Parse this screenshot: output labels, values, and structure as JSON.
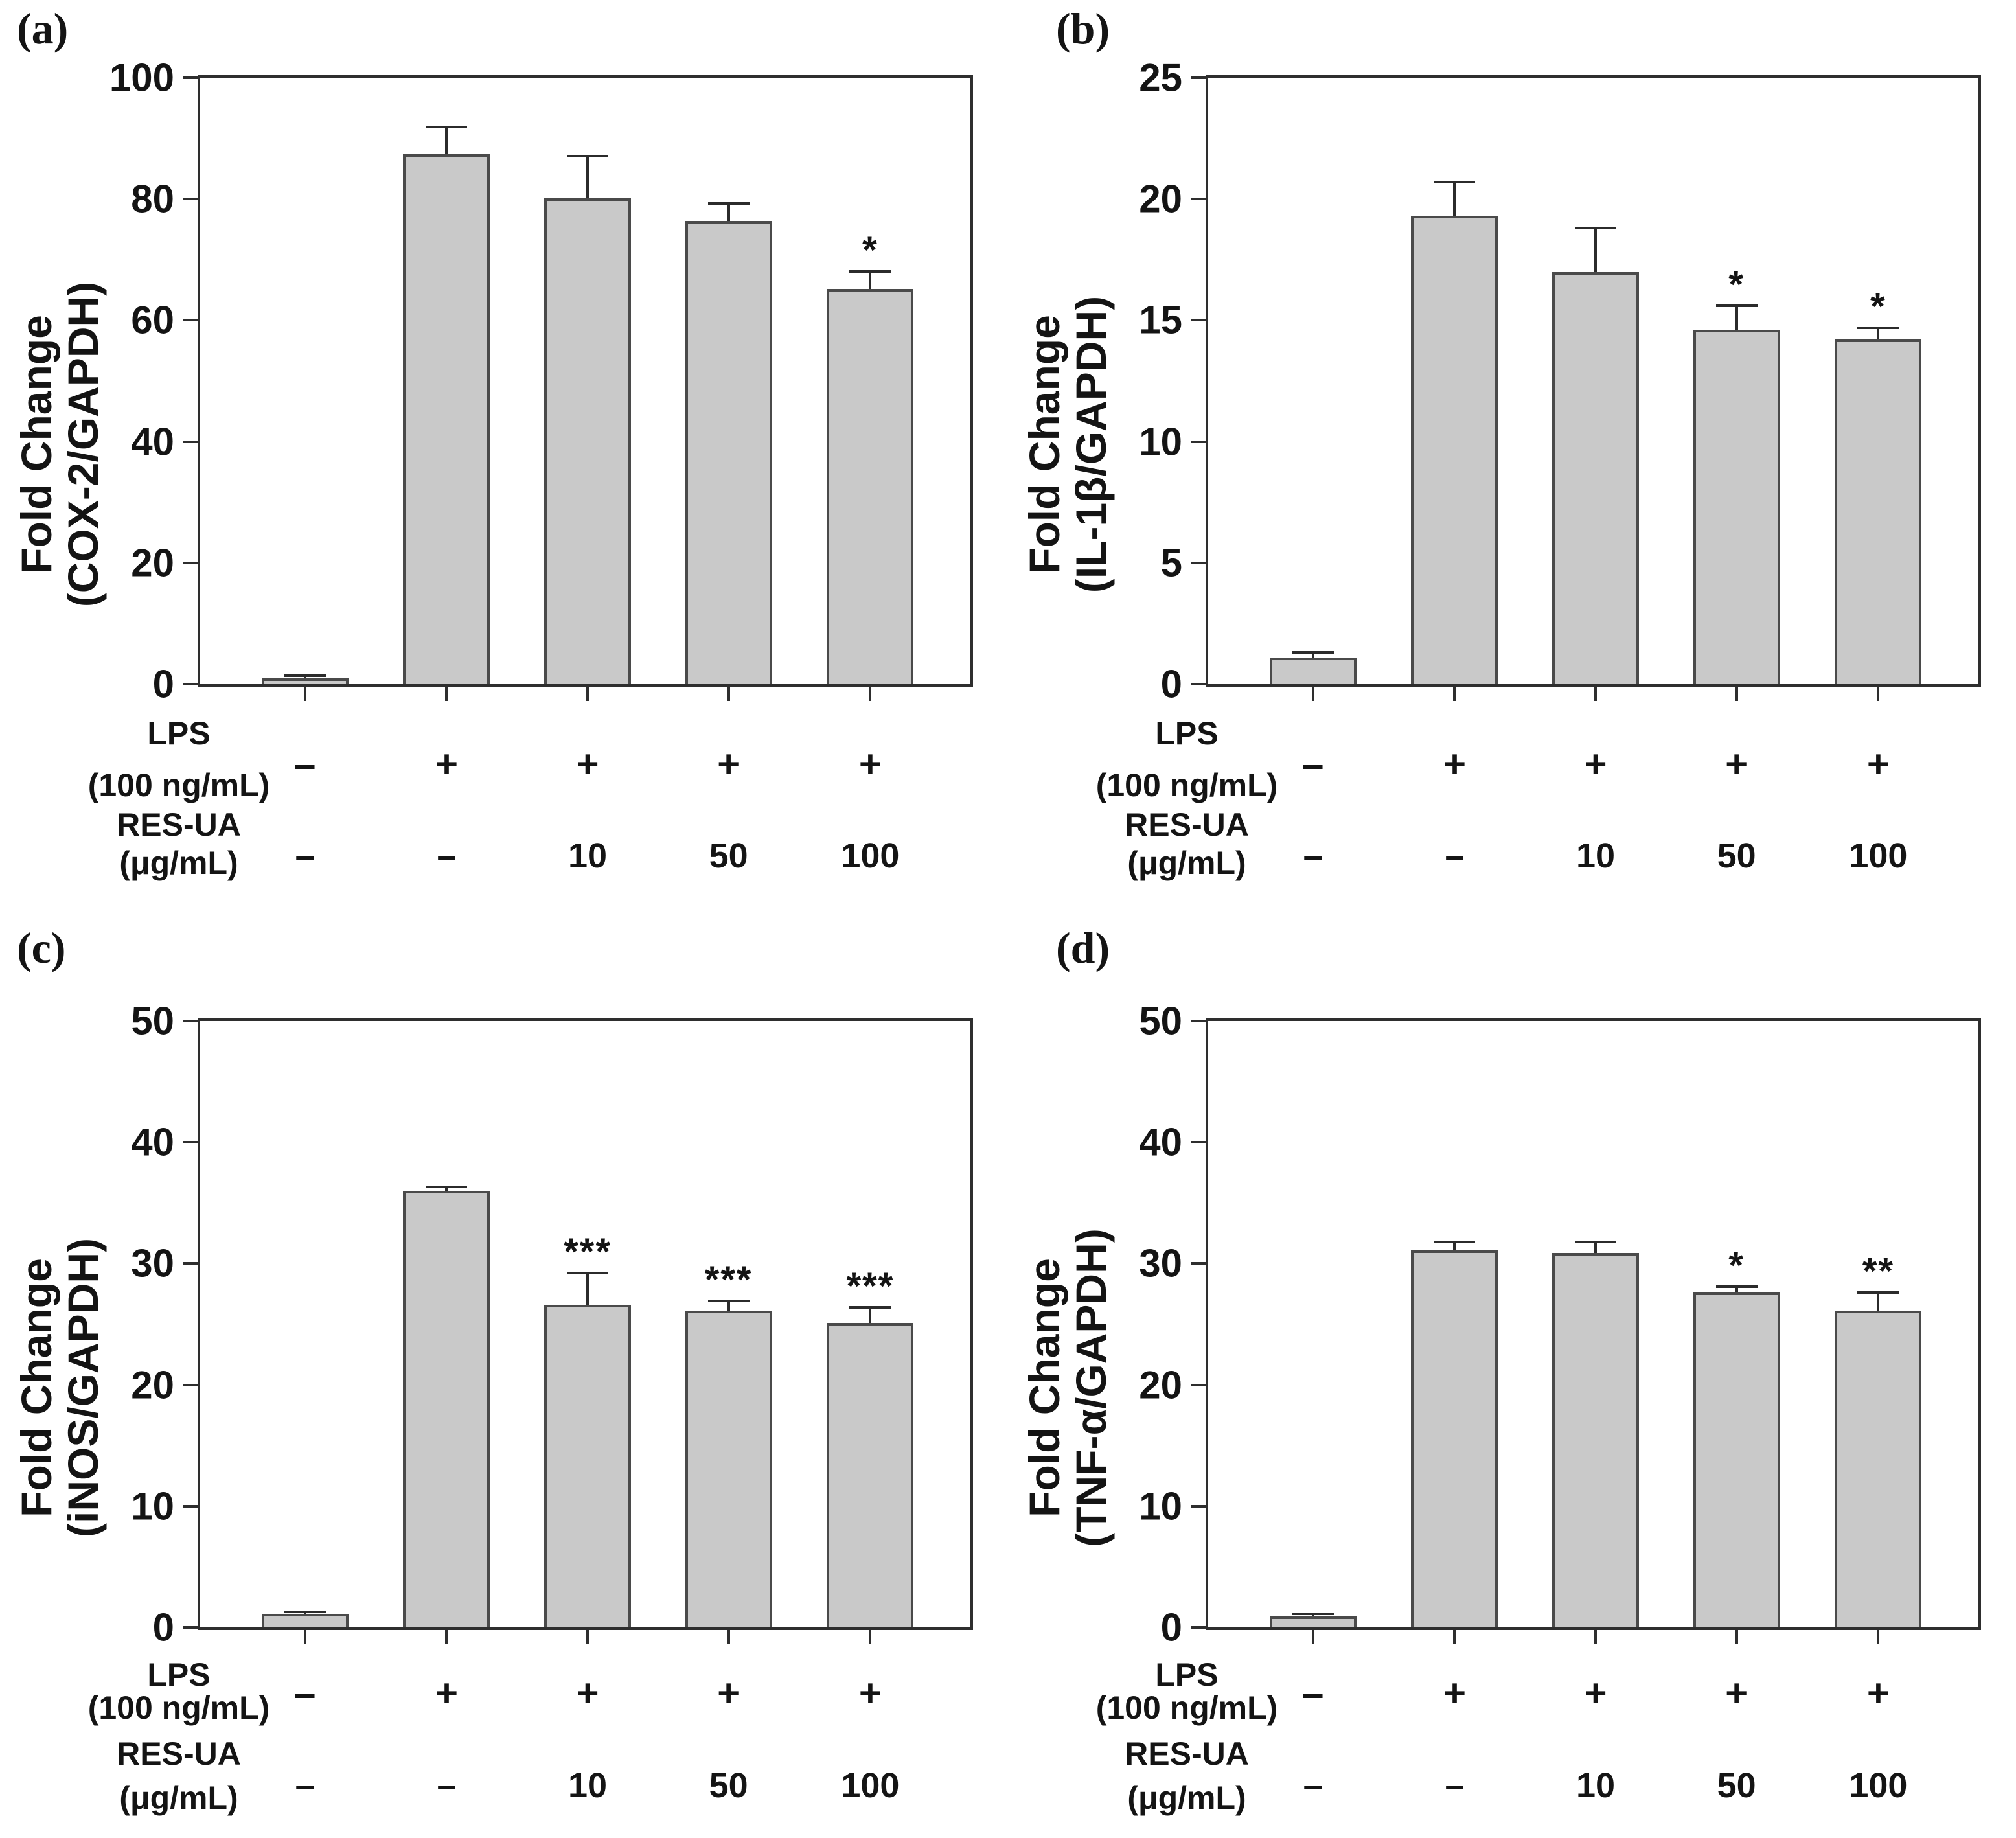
{
  "figure": {
    "background_color": "#ffffff",
    "bar_fill_color": "#c9c9c9",
    "bar_edge_color": "#4a4a4a",
    "axis_color": "#2e2e2e",
    "text_color": "#141414",
    "panel_letters": [
      "(a)",
      "(b)",
      "(c)",
      "(d)"
    ],
    "rows": {
      "lps_line1": "LPS",
      "lps_line2": "(100 ng/mL)",
      "res_line1": "RES-UA",
      "res_line2": "(μg/mL)",
      "lps_values": [
        "–",
        "+",
        "+",
        "+",
        "+"
      ],
      "res_values": [
        "–",
        "–",
        "10",
        "50",
        "100"
      ]
    }
  },
  "chart_data": [
    {
      "type": "bar",
      "panel": "(a)",
      "title": "",
      "ylabel_lines": [
        "Fold Change",
        "(COX-2/GAPDH)"
      ],
      "ylabel": "Fold Change (COX-2/GAPDH)",
      "ylim": [
        0,
        100
      ],
      "yticks": [
        0,
        20,
        40,
        60,
        80,
        100
      ],
      "categories": [
        "Control",
        "LPS",
        "LPS + RES-UA 10 μg/mL",
        "LPS + RES-UA 50 μg/mL",
        "LPS + RES-UA 100 μg/mL"
      ],
      "x_rows": {
        "LPS (100 ng/mL)": [
          "–",
          "+",
          "+",
          "+",
          "+"
        ],
        "RES-UA (μg/mL)": [
          "–",
          "–",
          "10",
          "50",
          "100"
        ]
      },
      "values": [
        1.0,
        87.4,
        80.1,
        76.4,
        65.2
      ],
      "errors": [
        0.4,
        4.5,
        7.0,
        2.9,
        2.9
      ],
      "significance": [
        "",
        "",
        "",
        "",
        "*"
      ],
      "grid": false,
      "legend": "none"
    },
    {
      "type": "bar",
      "panel": "(b)",
      "title": "",
      "ylabel_lines": [
        "Fold Change",
        "(IL-1β/GAPDH)"
      ],
      "ylabel": "Fold Change (IL-1β/GAPDH)",
      "ylim": [
        0,
        25
      ],
      "yticks": [
        0,
        5,
        10,
        15,
        20,
        25
      ],
      "categories": [
        "Control",
        "LPS",
        "LPS + RES-UA 10 μg/mL",
        "LPS + RES-UA 50 μg/mL",
        "LPS + RES-UA 100 μg/mL"
      ],
      "x_rows": {
        "LPS (100 ng/mL)": [
          "–",
          "+",
          "+",
          "+",
          "+"
        ],
        "RES-UA (μg/mL)": [
          "–",
          "–",
          "10",
          "50",
          "100"
        ]
      },
      "values": [
        1.1,
        19.3,
        17.0,
        14.6,
        14.2
      ],
      "errors": [
        0.2,
        1.4,
        1.8,
        1.0,
        0.5
      ],
      "significance": [
        "",
        "",
        "",
        "*",
        "*"
      ],
      "grid": false,
      "legend": "none"
    },
    {
      "type": "bar",
      "panel": "(c)",
      "title": "",
      "ylabel_lines": [
        "Fold Change",
        "(iNOS/GAPDH)"
      ],
      "ylabel": "Fold Change (iNOS/GAPDH)",
      "ylim": [
        0,
        50
      ],
      "yticks": [
        0,
        10,
        20,
        30,
        40,
        50
      ],
      "categories": [
        "Control",
        "LPS",
        "LPS + RES-UA 10 μg/mL",
        "LPS + RES-UA 50 μg/mL",
        "LPS + RES-UA 100 μg/mL"
      ],
      "x_rows": {
        "LPS (100 ng/mL)": [
          "–",
          "+",
          "+",
          "+",
          "+"
        ],
        "RES-UA (μg/mL)": [
          "–",
          "–",
          "10",
          "50",
          "100"
        ]
      },
      "values": [
        1.1,
        36.0,
        26.6,
        26.1,
        25.1
      ],
      "errors": [
        0.2,
        0.3,
        2.6,
        0.8,
        1.3
      ],
      "significance": [
        "",
        "",
        "***",
        "***",
        "***"
      ],
      "grid": false,
      "legend": "none"
    },
    {
      "type": "bar",
      "panel": "(d)",
      "title": "",
      "ylabel_lines": [
        "Fold Change",
        "(TNF-α/GAPDH)"
      ],
      "ylabel": "Fold Change (TNF-α/GAPDH)",
      "ylim": [
        0,
        50
      ],
      "yticks": [
        0,
        10,
        20,
        30,
        40,
        50
      ],
      "categories": [
        "Control",
        "LPS",
        "LPS + RES-UA 10 μg/mL",
        "LPS + RES-UA 50 μg/mL",
        "LPS + RES-UA 100 μg/mL"
      ],
      "x_rows": {
        "LPS (100 ng/mL)": [
          "–",
          "+",
          "+",
          "+",
          "+"
        ],
        "RES-UA (μg/mL)": [
          "–",
          "–",
          "10",
          "50",
          "100"
        ]
      },
      "values": [
        0.9,
        31.1,
        30.9,
        27.6,
        26.1
      ],
      "errors": [
        0.2,
        0.7,
        0.9,
        0.5,
        1.5
      ],
      "significance": [
        "",
        "",
        "",
        "*",
        "**"
      ],
      "grid": false,
      "legend": "none"
    }
  ]
}
